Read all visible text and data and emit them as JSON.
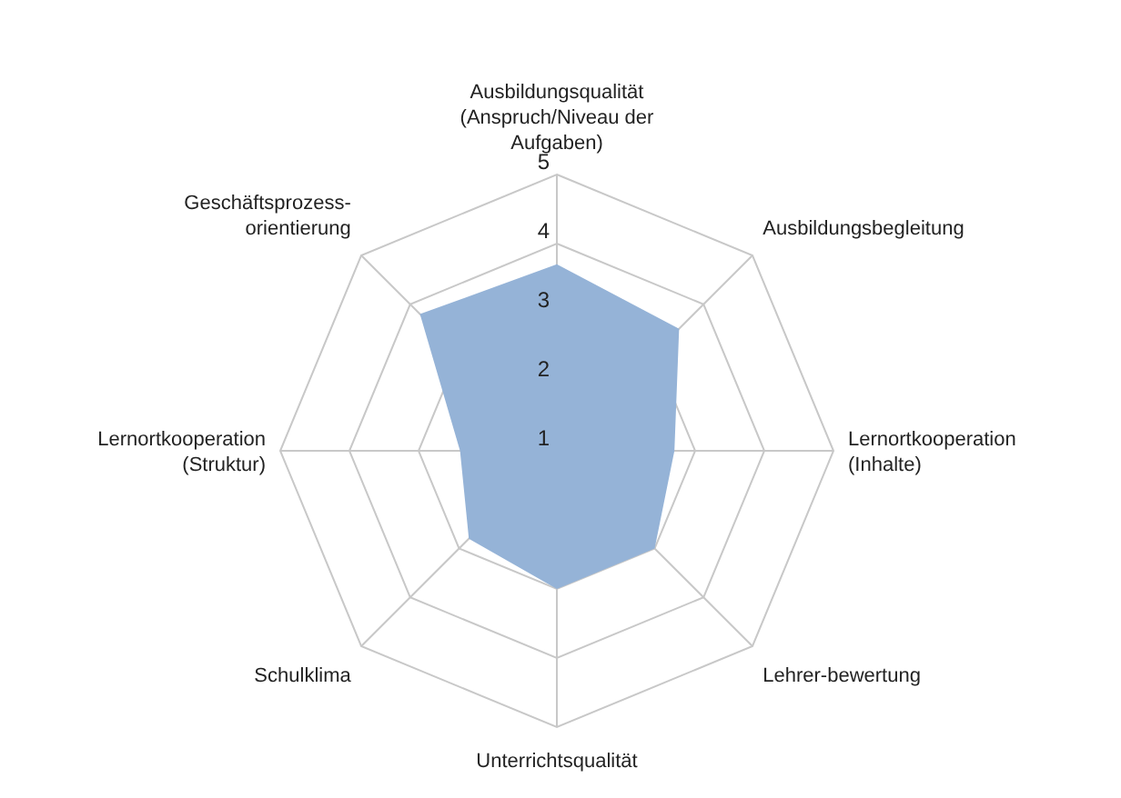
{
  "chart_data": {
    "type": "radar",
    "categories": [
      "Ausbildungsqualität\n(Anspruch/Niveau der\nAufgaben)",
      "Ausbildungsbegleitung",
      "Lernortkooperation\n(Inhalte)",
      "Lehrer-bewertung",
      "Unterrichtsqualität",
      "Schulklima",
      "Lernortkooperation\n(Struktur)",
      "Geschäftsprozess-\norientierung"
    ],
    "series": [
      {
        "color": "#95b3d7",
        "values": [
          3.7,
          3.5,
          2.7,
          3.0,
          3.0,
          2.8,
          2.4,
          3.8
        ]
      }
    ],
    "ylim": [
      1,
      5
    ],
    "yticks": [
      1,
      2,
      3,
      4,
      5
    ],
    "grid": true,
    "legend": false
  }
}
